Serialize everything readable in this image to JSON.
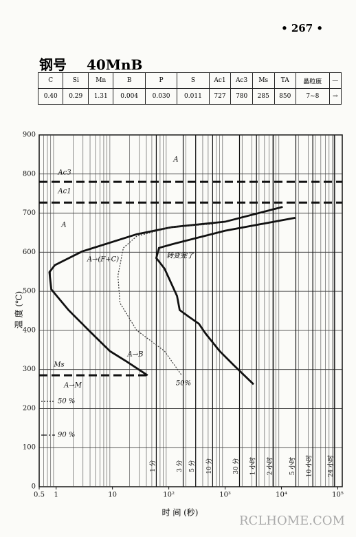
{
  "page_number": "• 267 •",
  "header": {
    "label": "钢号",
    "steel": "40MnB"
  },
  "table": {
    "columns": [
      "C",
      "Si",
      "Mn",
      "B",
      "P",
      "S",
      "Ac1",
      "Ac3",
      "Ms",
      "TA",
      "晶粒度",
      "—"
    ],
    "rows": [
      [
        "0.40",
        "0.29",
        "1.31",
        "0.004",
        "0.030",
        "0.011",
        "727",
        "780",
        "285",
        "850",
        "7~8",
        "→"
      ]
    ]
  },
  "chart_data": {
    "type": "line",
    "xlabel": "时 间 (秒)",
    "ylabel": "温 度 (℃)",
    "xlog": true,
    "grid": true,
    "xlim": [
      0.5,
      120000
    ],
    "ylim": [
      0,
      900
    ],
    "xticks": [
      {
        "value": 0.5,
        "label": "0.5"
      },
      1,
      10,
      {
        "value": 100,
        "label": "10²"
      },
      {
        "value": 1000,
        "label": "10³"
      },
      {
        "value": 10000,
        "label": "10⁴"
      },
      {
        "value": 100000,
        "label": "10⁵"
      }
    ],
    "yticks": [
      0,
      100,
      200,
      300,
      400,
      500,
      600,
      700,
      800,
      900
    ],
    "time_marks": [
      {
        "value": 60,
        "label": "1 分"
      },
      {
        "value": 180,
        "label": "3 分"
      },
      {
        "value": 300,
        "label": "5 分"
      },
      {
        "value": 600,
        "label": "10 分"
      },
      {
        "value": 1800,
        "label": "30 分"
      },
      {
        "value": 3600,
        "label": "1 小时"
      },
      {
        "value": 7200,
        "label": "2 小时"
      },
      {
        "value": 18000,
        "label": "5 小时"
      },
      {
        "value": 36000,
        "label": "10 小时"
      },
      {
        "value": 86400,
        "label": "24 小时"
      }
    ],
    "critical_lines": [
      {
        "name": "Ac3",
        "value": 780
      },
      {
        "name": "Ac1",
        "value": 727
      },
      {
        "name": "Ms",
        "value": 285
      }
    ],
    "series": [
      {
        "style": "solid",
        "color": "#111",
        "x": [
          10500,
          1000,
          112,
          27,
          2.9,
          0.95,
          0.76,
          0.82,
          1.66,
          3.8,
          9,
          18,
          42
        ],
        "values": [
          716,
          678,
          664,
          646,
          602,
          567,
          549,
          505,
          452,
          400,
          347,
          320,
          285
        ]
      },
      {
        "style": "solid",
        "color": "#111",
        "x": [
          17500,
          1000,
          112,
          67,
          60,
          84,
          140,
          156,
          226,
          342,
          455,
          800,
          1400,
          3200
        ],
        "values": [
          688,
          655,
          620,
          611,
          585,
          558,
          488,
          452,
          435,
          417,
          391,
          347,
          312,
          262
        ]
      },
      {
        "style": "dotted",
        "color": "#333",
        "x": [
          600,
          112,
          27,
          15.6,
          12.5,
          13.6,
          27,
          84,
          170
        ],
        "values": [
          672,
          664,
          641,
          611,
          540,
          470,
          400,
          347,
          285
        ]
      }
    ],
    "annotations": [
      "A",
      "A",
      "A→(F+C)",
      "转变完了",
      "A→B",
      "A→M",
      "50%"
    ],
    "legend": [
      {
        "label": "50 %",
        "style": "dotted"
      },
      {
        "label": "90 %",
        "style": "dashdot"
      }
    ]
  },
  "watermark": "RCLHOME.COM"
}
